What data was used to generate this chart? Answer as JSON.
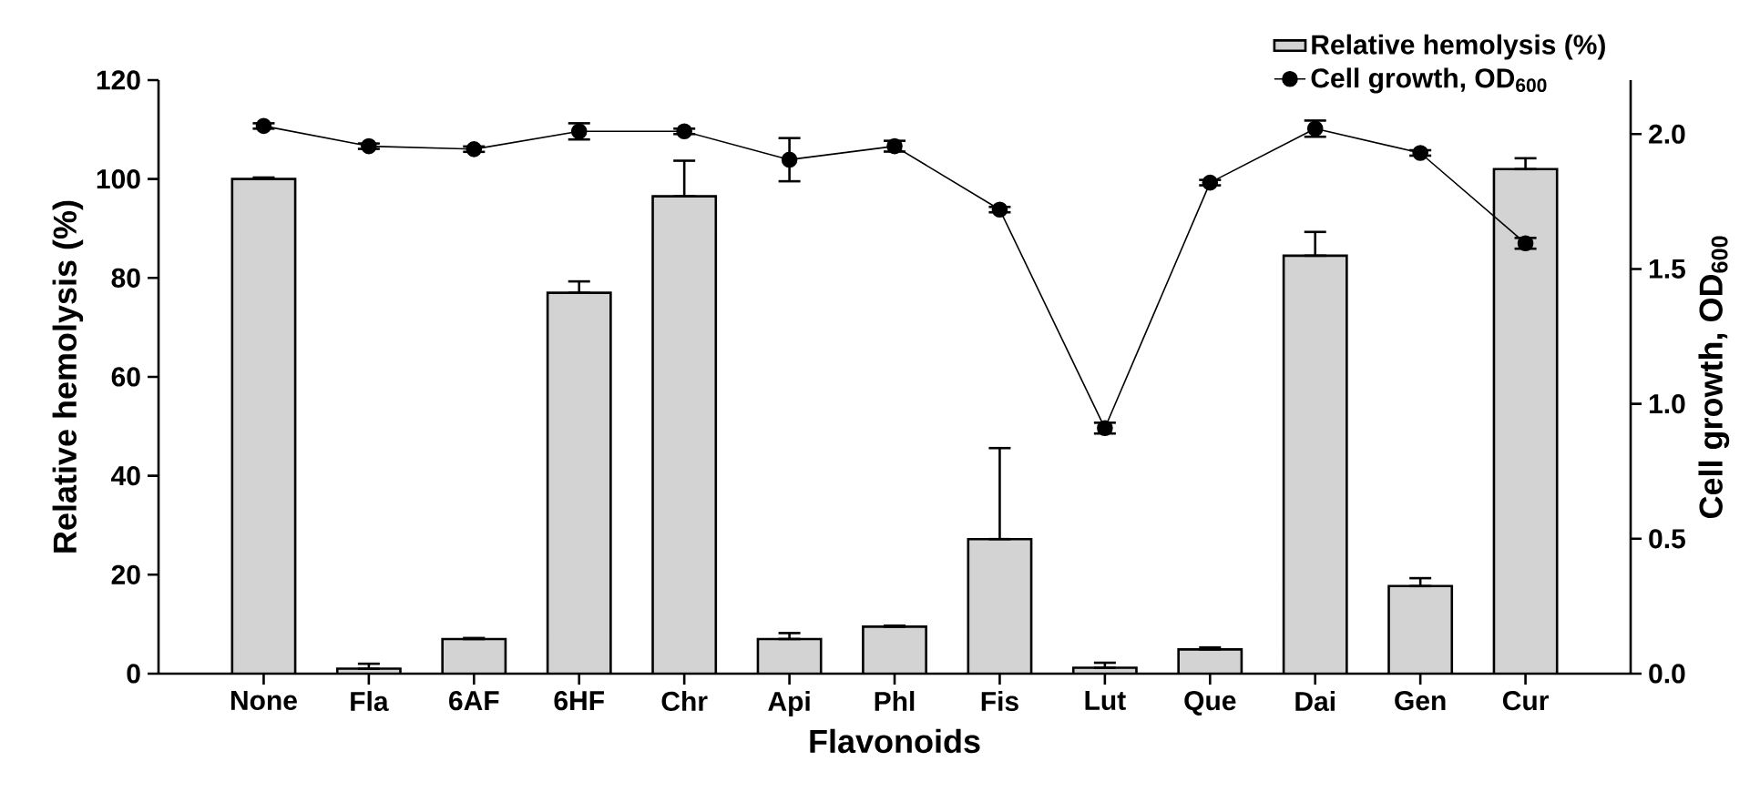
{
  "chart_data": {
    "type": "bar",
    "xlabel": "Flavonoids",
    "ylabel": "Relative hemolysis (%)",
    "y2label": "Cell growth, OD$_{600}$",
    "categories": [
      "None",
      "Fla",
      "6AF",
      "6HF",
      "Chr",
      "Api",
      "Phl",
      "Fis",
      "Lut",
      "Que",
      "Dai",
      "Gen",
      "Cur"
    ],
    "series": [
      {
        "name": "Relative hemolysis (%)",
        "color": "#d3d3d3",
        "values": [
          100,
          1,
          7,
          77,
          96.5,
          7,
          9.5,
          27.2,
          1.2,
          4.9,
          84.5,
          17.7,
          102
        ],
        "errors": [
          [
            100,
            100.3
          ],
          [
            1,
            2
          ],
          [
            7,
            7.2
          ],
          [
            77,
            79.3
          ],
          [
            96.5,
            103.7
          ],
          [
            7,
            8.2
          ],
          [
            9.5,
            9.7
          ],
          [
            27.2,
            45.6
          ],
          [
            1.2,
            2.2
          ],
          [
            4.9,
            5.3
          ],
          [
            84.5,
            89.3
          ],
          [
            17.7,
            19.3
          ],
          [
            102,
            104.2
          ]
        ]
      },
      {
        "name": "Cell growth, OD$_{600}$",
        "type": "line",
        "axis": "y2",
        "color": "#000000",
        "marker": "circle",
        "values": [
          2.03,
          1.955,
          1.944,
          2.01,
          2.01,
          1.905,
          1.955,
          1.72,
          0.91,
          1.82,
          2.02,
          1.93,
          1.595
        ],
        "errors": [
          0.01,
          0.01,
          0.01,
          0.03,
          0.01,
          0.08,
          0.02,
          0.01,
          0.02,
          0.01,
          0.03,
          0.01,
          0.02
        ]
      }
    ],
    "ylim": [
      0,
      120
    ],
    "yticks": [
      0,
      20,
      40,
      60,
      80,
      100,
      120
    ],
    "y2lim": [
      0,
      2.2
    ],
    "y2ticks": [
      {
        "value": 0,
        "label": "0.0"
      },
      0.5,
      {
        "value": 1,
        "label": "1.0"
      },
      1.5,
      {
        "value": 2,
        "label": "2.0"
      }
    ],
    "legend": "top right"
  }
}
